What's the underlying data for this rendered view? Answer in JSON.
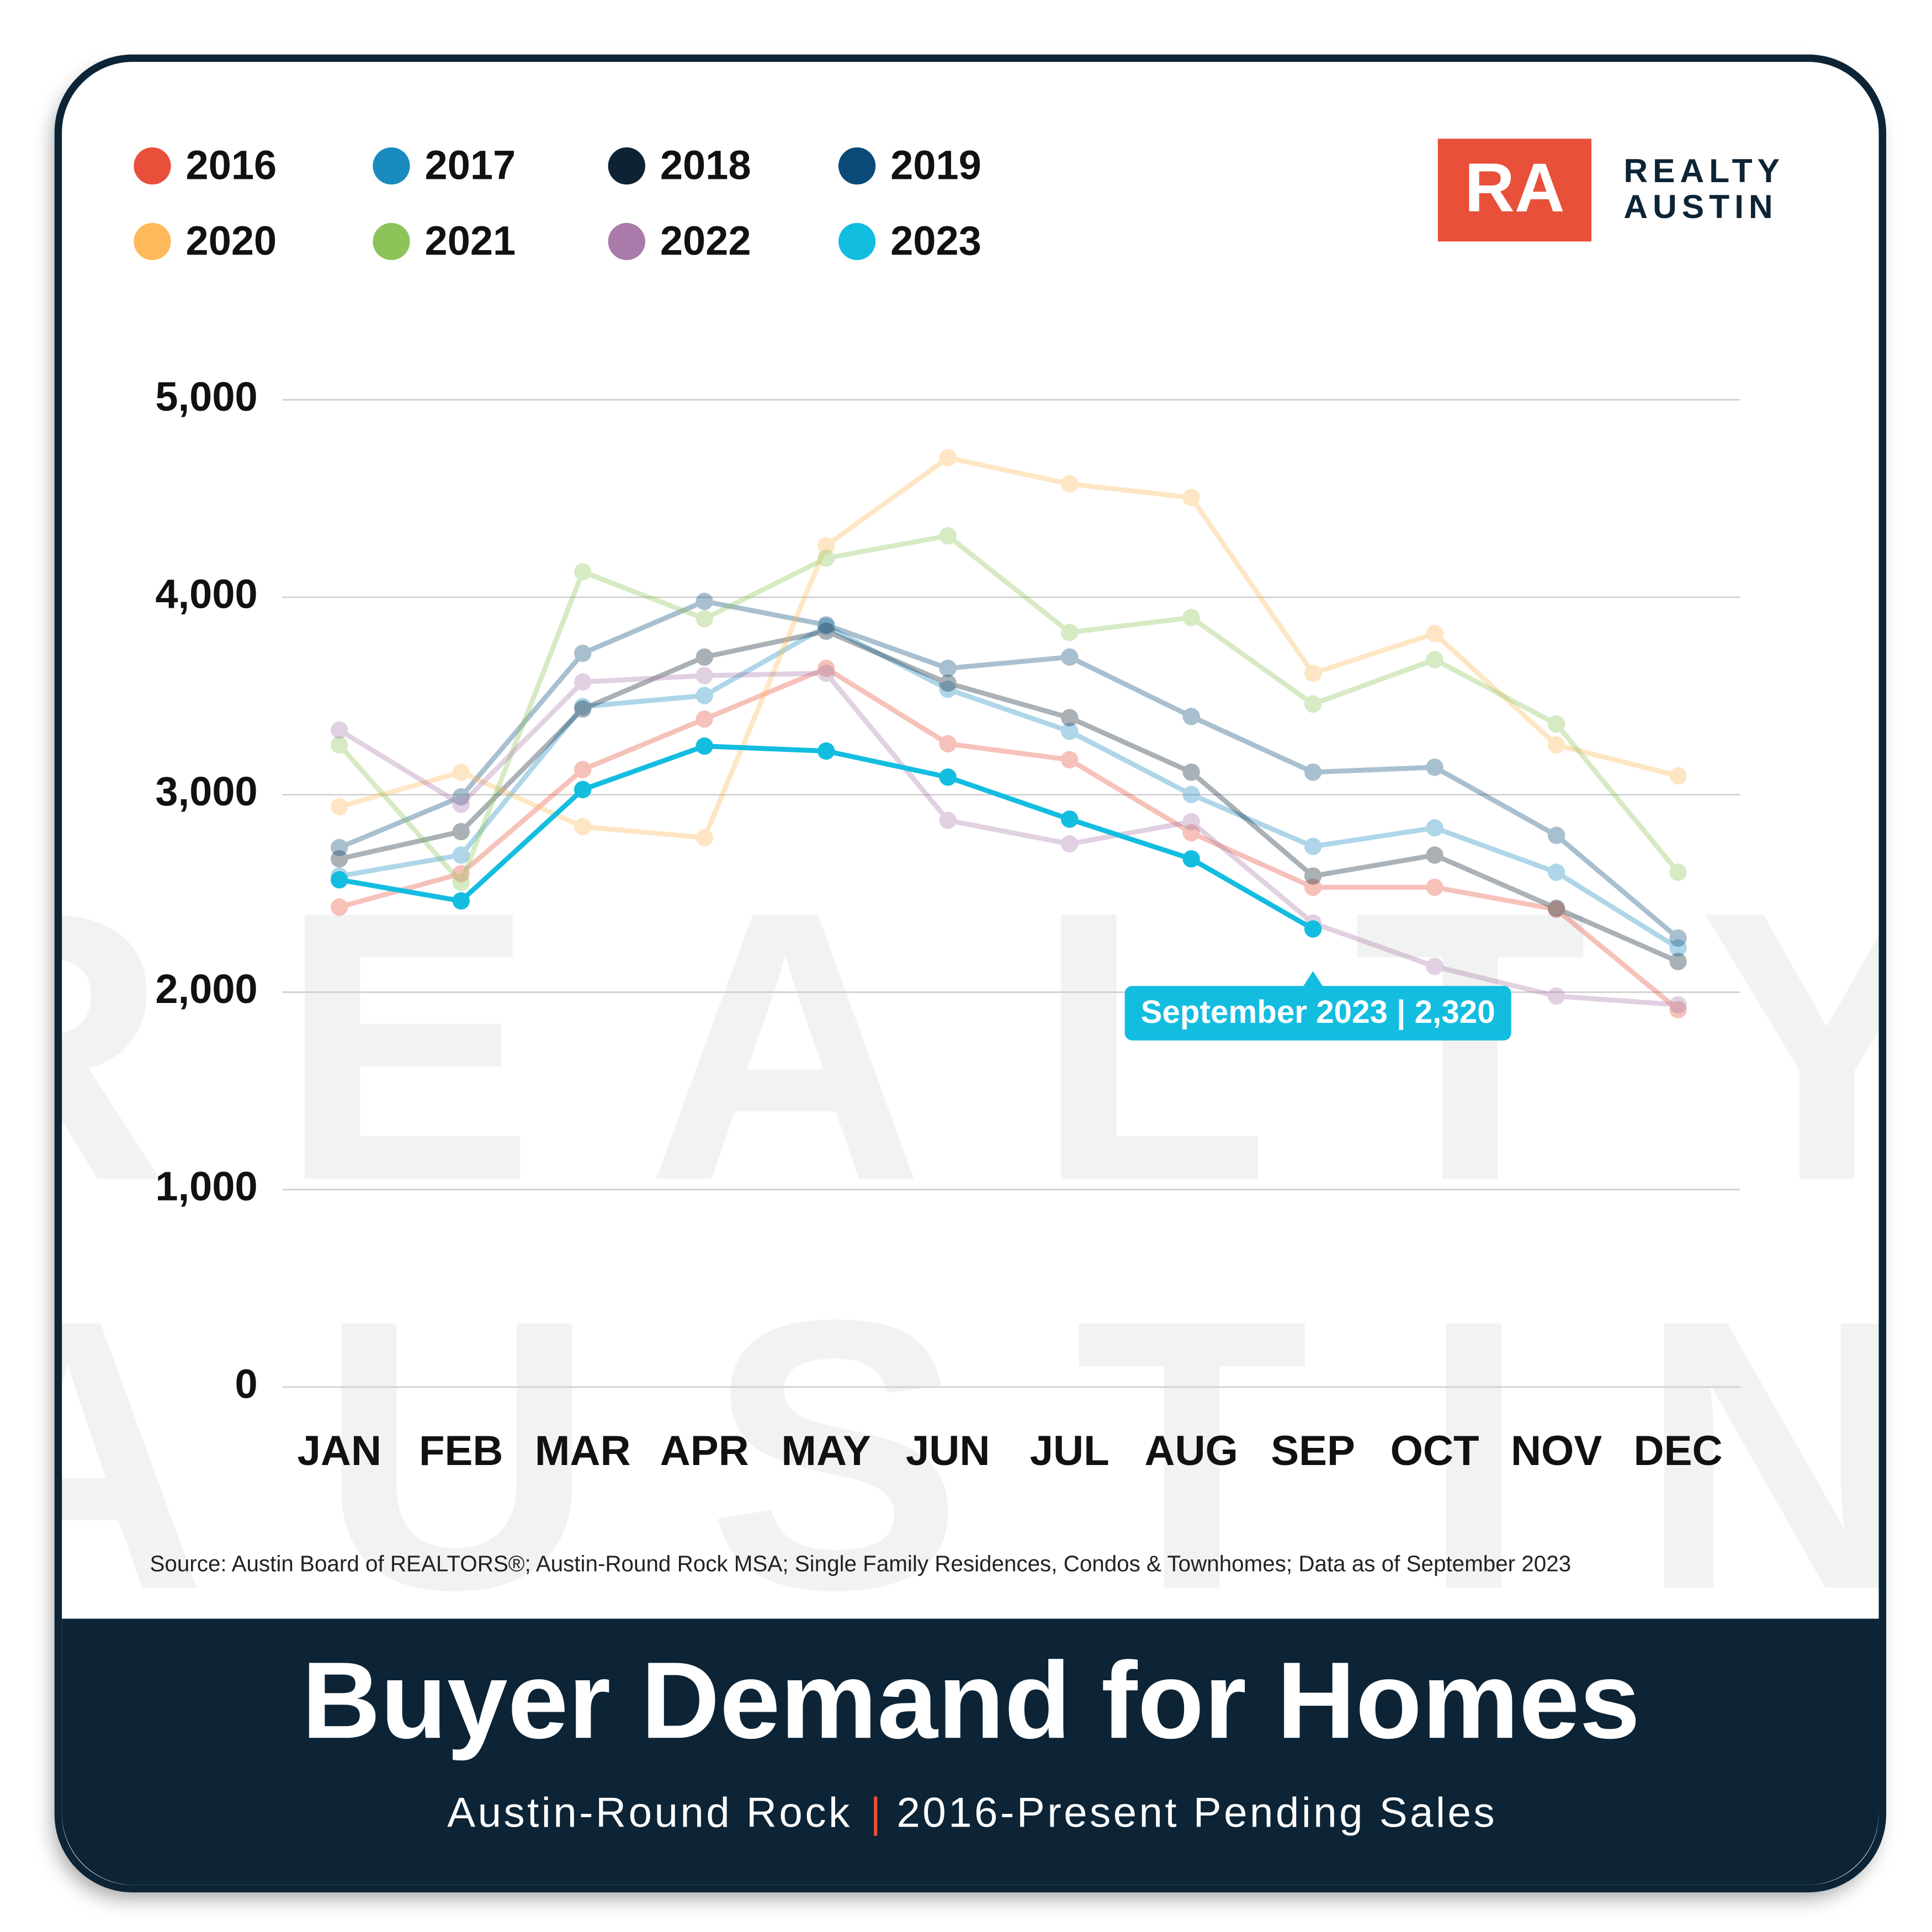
{
  "chart_data": {
    "type": "line",
    "title": "Buyer Demand for Homes",
    "subtitle": [
      "Austin-Round Rock",
      "2016-Present Pending Sales"
    ],
    "subtitle_separator": "|",
    "source": "Source: Austin Board of REALTORS®; Austin-Round Rock MSA; Single Family Residences, Condos & Townhomes; Data as of September 2023",
    "logo": {
      "mark": "RA",
      "lines": [
        "REALTY",
        "AUSTIN"
      ]
    },
    "watermark": [
      "REALTY",
      "AUSTIN"
    ],
    "annotation": "September 2023 | 2,320",
    "categories": [
      "JAN",
      "FEB",
      "MAR",
      "APR",
      "MAY",
      "JUN",
      "JUL",
      "AUG",
      "SEP",
      "OCT",
      "NOV",
      "DEC"
    ],
    "series": [
      {
        "name": "2016",
        "color": "#e8503a",
        "values": [
          2431,
          2600,
          3127,
          3383,
          3640,
          3258,
          3177,
          2807,
          2531,
          2531,
          2419,
          1911
        ]
      },
      {
        "name": "2017",
        "color": "#1a8bbf",
        "values": [
          2588,
          2694,
          3446,
          3502,
          3853,
          3534,
          3321,
          3001,
          2738,
          2832,
          2607,
          2224
        ]
      },
      {
        "name": "2018",
        "color": "#0d2233",
        "values": [
          2675,
          2813,
          3434,
          3697,
          3828,
          3565,
          3390,
          3114,
          2588,
          2694,
          2425,
          2155
        ]
      },
      {
        "name": "2019",
        "color": "#0a4a78",
        "values": [
          2732,
          2989,
          3716,
          3979,
          3860,
          3640,
          3697,
          3396,
          3114,
          3139,
          2794,
          2274
        ]
      },
      {
        "name": "2020",
        "color": "#fdb95a",
        "values": [
          2939,
          3114,
          2838,
          2782,
          4261,
          4706,
          4574,
          4505,
          3615,
          3816,
          3252,
          3095
        ]
      },
      {
        "name": "2021",
        "color": "#8cc45a",
        "values": [
          3252,
          2556,
          4129,
          3891,
          4198,
          4311,
          3822,
          3897,
          3459,
          3684,
          3358,
          2607
        ]
      },
      {
        "name": "2022",
        "color": "#a97aaa",
        "values": [
          3327,
          2951,
          3571,
          3603,
          3615,
          2870,
          2751,
          2863,
          2350,
          2130,
          1980,
          1936
        ]
      },
      {
        "name": "2023",
        "color": "#13bde0",
        "values": [
          2569,
          2462,
          3026,
          3246,
          3221,
          3089,
          2876,
          2675,
          2320,
          null,
          null,
          null
        ]
      }
    ],
    "ylim": [
      0,
      5000
    ],
    "yticks": [
      0,
      {
        "value": 1000,
        "label": "1,000"
      },
      {
        "value": 2000,
        "label": "2,000"
      },
      {
        "value": 3000,
        "label": "3,000"
      },
      {
        "value": 4000,
        "label": "4,000"
      },
      {
        "value": 5000,
        "label": "5,000"
      }
    ],
    "grid": true
  }
}
